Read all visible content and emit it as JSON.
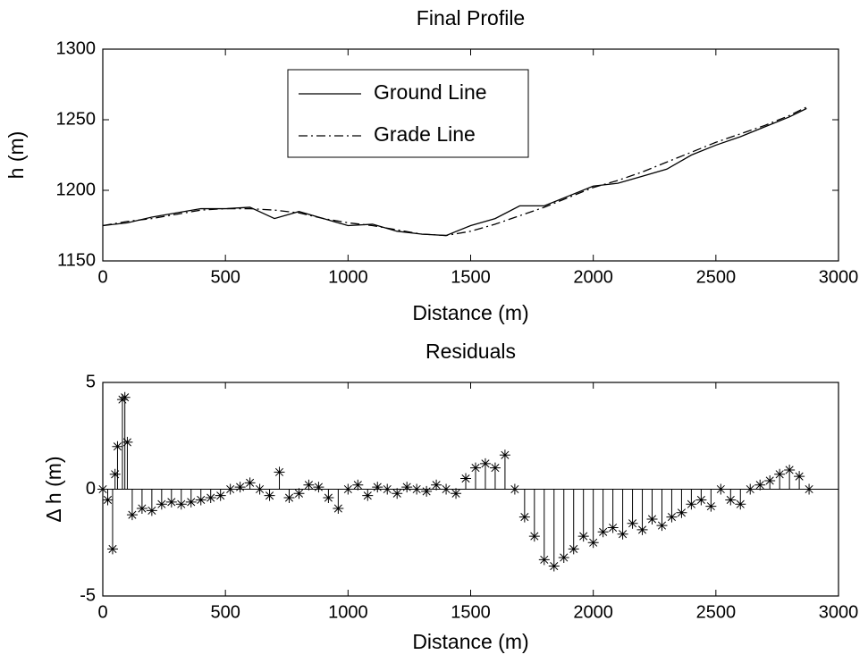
{
  "chart_data": [
    {
      "type": "line",
      "title": "Final Profile",
      "x_label": "Distance (m)",
      "y_label": "h (m)",
      "x": [
        0,
        100,
        200,
        300,
        400,
        500,
        600,
        700,
        800,
        900,
        1000,
        1100,
        1200,
        1300,
        1400,
        1500,
        1600,
        1700,
        1800,
        1900,
        2000,
        2100,
        2200,
        2300,
        2400,
        2500,
        2600,
        2700,
        2800,
        2870
      ],
      "series": [
        {
          "name": "Ground Line",
          "color": "#000000",
          "dash": "solid",
          "values": [
            1175,
            1177,
            1181,
            1184,
            1187,
            1187,
            1188,
            1180,
            1185,
            1180,
            1175,
            1176,
            1171,
            1169,
            1168,
            1175,
            1180,
            1189,
            1189,
            1196,
            1203,
            1205,
            1210,
            1215,
            1225,
            1232,
            1238,
            1245,
            1252,
            1258
          ]
        },
        {
          "name": "Grade Line",
          "color": "#000000",
          "dash": "dashdot",
          "values": [
            1175,
            1178,
            1180,
            1183,
            1186,
            1187,
            1187,
            1186,
            1184,
            1180,
            1177,
            1175,
            1172,
            1169,
            1168,
            1171,
            1176,
            1182,
            1188,
            1195,
            1202,
            1207,
            1213,
            1220,
            1227,
            1234,
            1240,
            1246,
            1253,
            1259
          ]
        }
      ],
      "xlim": [
        0,
        3000
      ],
      "xticks": [
        0,
        500,
        1000,
        1500,
        2000,
        2500,
        3000
      ],
      "ylim": [
        1150,
        1300
      ],
      "yticks": [
        1150,
        1200,
        1250,
        1300
      ],
      "legend": "upper center"
    },
    {
      "type": "stem",
      "title": "Residuals",
      "x_label": "Distance (m)",
      "y_label": "Δ h (m)",
      "marker": "asterisk",
      "color": "#000000",
      "x": [
        0,
        20,
        40,
        50,
        60,
        80,
        90,
        100,
        120,
        160,
        200,
        240,
        280,
        320,
        360,
        400,
        440,
        480,
        520,
        560,
        600,
        640,
        680,
        720,
        760,
        800,
        840,
        880,
        920,
        960,
        1000,
        1040,
        1080,
        1120,
        1160,
        1200,
        1240,
        1280,
        1320,
        1360,
        1400,
        1440,
        1480,
        1520,
        1560,
        1600,
        1640,
        1680,
        1720,
        1760,
        1800,
        1840,
        1880,
        1920,
        1960,
        2000,
        2040,
        2080,
        2120,
        2160,
        2200,
        2240,
        2280,
        2320,
        2360,
        2400,
        2440,
        2480,
        2520,
        2560,
        2600,
        2640,
        2680,
        2720,
        2760,
        2800,
        2840,
        2880
      ],
      "values": [
        0,
        -0.5,
        -2.8,
        0.7,
        2.0,
        4.2,
        4.3,
        2.2,
        -1.2,
        -0.9,
        -1.0,
        -0.7,
        -0.6,
        -0.7,
        -0.6,
        -0.5,
        -0.4,
        -0.3,
        0.0,
        0.1,
        0.3,
        0.0,
        -0.3,
        0.8,
        -0.4,
        -0.2,
        0.2,
        0.1,
        -0.4,
        -0.9,
        0.0,
        0.2,
        -0.3,
        0.1,
        0.0,
        -0.2,
        0.1,
        0.0,
        -0.1,
        0.2,
        0.0,
        -0.2,
        0.5,
        1.0,
        1.2,
        1.0,
        1.6,
        0.0,
        -1.3,
        -2.2,
        -3.3,
        -3.6,
        -3.2,
        -2.8,
        -2.2,
        -2.5,
        -2.0,
        -1.8,
        -2.1,
        -1.6,
        -1.9,
        -1.4,
        -1.7,
        -1.3,
        -1.1,
        -0.7,
        -0.5,
        -0.8,
        0.0,
        -0.5,
        -0.7,
        0.0,
        0.2,
        0.4,
        0.7,
        0.9,
        0.6,
        0.0
      ],
      "xlim": [
        0,
        3000
      ],
      "xticks": [
        0,
        500,
        1000,
        1500,
        2000,
        2500,
        3000
      ],
      "ylim": [
        -5,
        5
      ],
      "yticks": [
        -5,
        0,
        5
      ]
    }
  ]
}
